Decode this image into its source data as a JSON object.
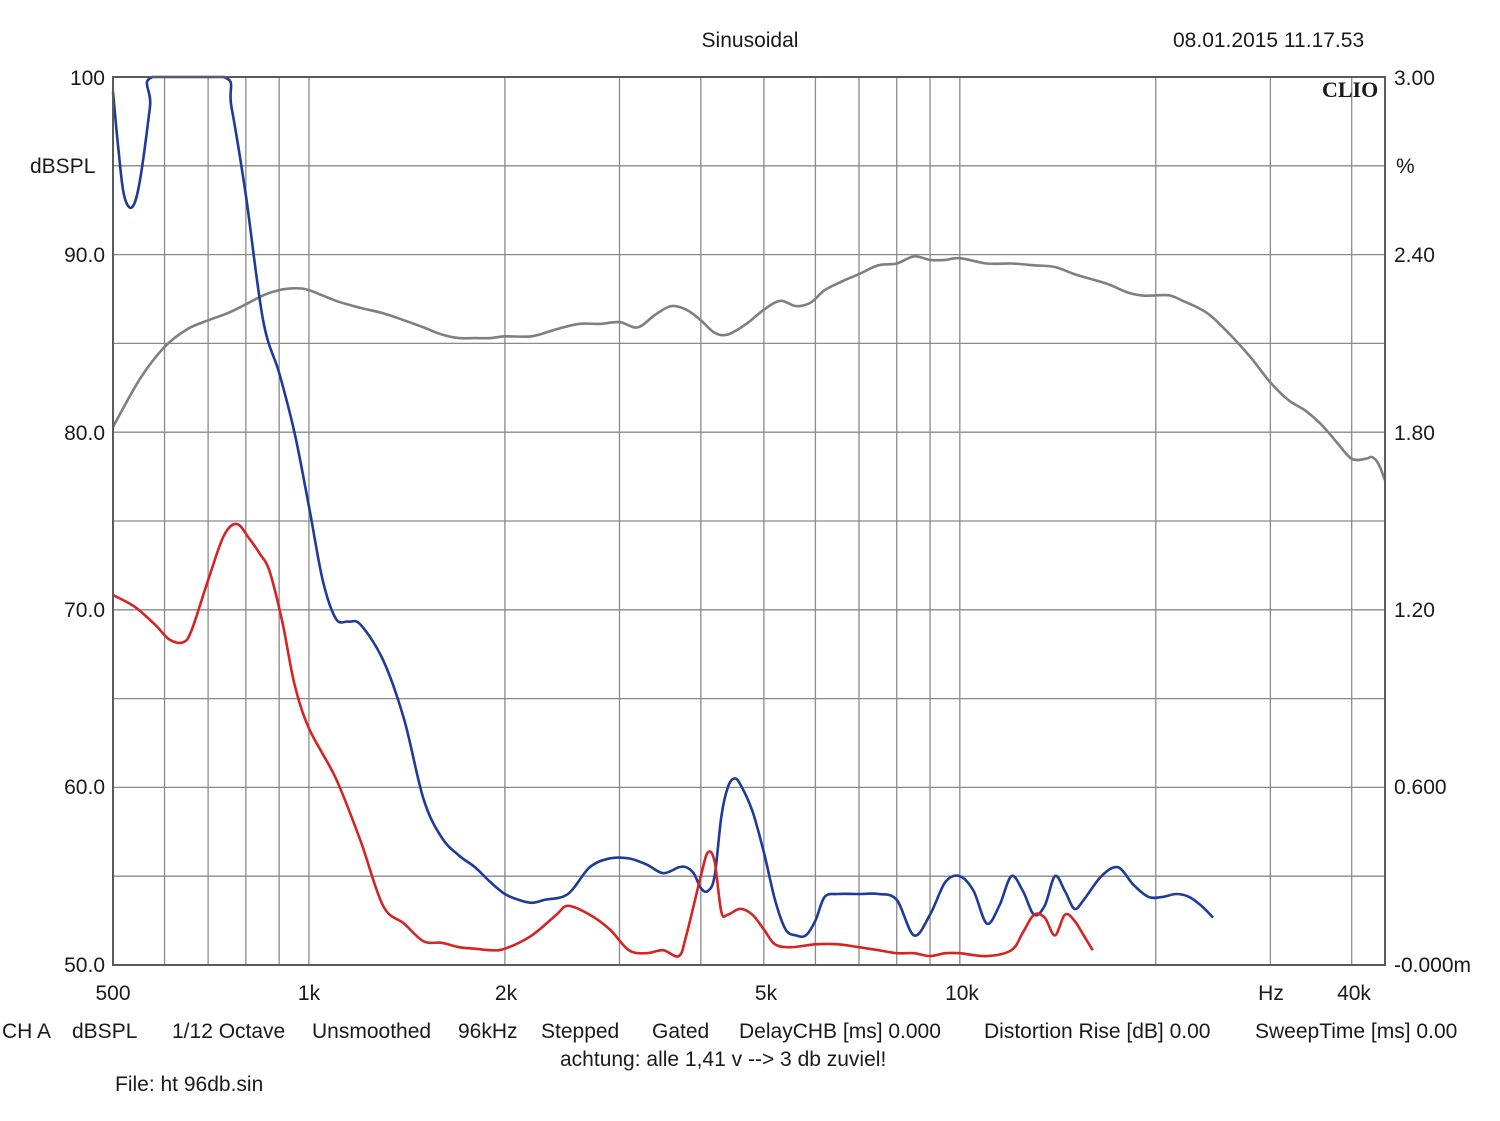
{
  "chart_data": {
    "type": "line",
    "title": "Sinusoidal",
    "timestamp": "08.01.2015 11.17.53",
    "brand": "CLIO",
    "x_scale": "log",
    "xlim": [
      500,
      45000
    ],
    "x_tick_labels": [
      {
        "value": 500,
        "label": "500"
      },
      {
        "value": 1000,
        "label": "1k"
      },
      {
        "value": 2000,
        "label": "2k"
      },
      {
        "value": 5000,
        "label": "5k"
      },
      {
        "value": 10000,
        "label": "10k"
      },
      {
        "value": 40000,
        "label": "40k"
      }
    ],
    "x_unit": "Hz",
    "ylabel_left": "dBSPL",
    "ylim_left": [
      50,
      100
    ],
    "y_tick_labels_left": [
      "100",
      "90.0",
      "80.0",
      "70.0",
      "60.0",
      "50.0"
    ],
    "ylabel_right": "%",
    "ylim_right": [
      0,
      3
    ],
    "y_tick_labels_right": [
      "3.00",
      "2.40",
      "1.80",
      "1.20",
      "0.600",
      "-0.000m"
    ],
    "grid": true,
    "series": [
      {
        "color": "#7f7f7f",
        "axis": "left",
        "points": [
          [
            500,
            80.3
          ],
          [
            550,
            83
          ],
          [
            600,
            84.8
          ],
          [
            650,
            85.8
          ],
          [
            700,
            86.3
          ],
          [
            750,
            86.7
          ],
          [
            800,
            87.2
          ],
          [
            850,
            87.7
          ],
          [
            900,
            88
          ],
          [
            950,
            88.1
          ],
          [
            1000,
            88
          ],
          [
            1100,
            87.4
          ],
          [
            1200,
            87
          ],
          [
            1300,
            86.7
          ],
          [
            1400,
            86.3
          ],
          [
            1500,
            85.9
          ],
          [
            1600,
            85.5
          ],
          [
            1700,
            85.3
          ],
          [
            1800,
            85.3
          ],
          [
            1900,
            85.3
          ],
          [
            2000,
            85.4
          ],
          [
            2200,
            85.4
          ],
          [
            2400,
            85.8
          ],
          [
            2600,
            86.1
          ],
          [
            2800,
            86.1
          ],
          [
            3000,
            86.2
          ],
          [
            3200,
            85.9
          ],
          [
            3400,
            86.6
          ],
          [
            3600,
            87.1
          ],
          [
            3800,
            86.9
          ],
          [
            4000,
            86.3
          ],
          [
            4200,
            85.6
          ],
          [
            4400,
            85.5
          ],
          [
            4700,
            86.1
          ],
          [
            5000,
            86.9
          ],
          [
            5300,
            87.4
          ],
          [
            5600,
            87.1
          ],
          [
            5900,
            87.3
          ],
          [
            6200,
            88
          ],
          [
            6600,
            88.5
          ],
          [
            7000,
            88.9
          ],
          [
            7500,
            89.4
          ],
          [
            8000,
            89.5
          ],
          [
            8500,
            89.9
          ],
          [
            9000,
            89.7
          ],
          [
            9500,
            89.7
          ],
          [
            10000,
            89.8
          ],
          [
            11000,
            89.5
          ],
          [
            12000,
            89.5
          ],
          [
            13000,
            89.4
          ],
          [
            14000,
            89.3
          ],
          [
            15000,
            88.9
          ],
          [
            16000,
            88.6
          ],
          [
            17000,
            88.3
          ],
          [
            18000,
            87.9
          ],
          [
            19000,
            87.7
          ],
          [
            20000,
            87.7
          ],
          [
            21000,
            87.7
          ],
          [
            22000,
            87.4
          ],
          [
            24000,
            86.7
          ],
          [
            26000,
            85.5
          ],
          [
            28000,
            84.2
          ],
          [
            30000,
            82.8
          ],
          [
            32000,
            81.8
          ],
          [
            34000,
            81.2
          ],
          [
            36000,
            80.4
          ],
          [
            38000,
            79.4
          ],
          [
            40000,
            78.5
          ],
          [
            42000,
            78.5
          ],
          [
            43000,
            78.6
          ],
          [
            44000,
            78.2
          ],
          [
            45000,
            77.3
          ]
        ]
      },
      {
        "color": "#1f3b9a",
        "axis": "right",
        "points": [
          [
            500,
            2.95
          ],
          [
            510,
            2.75
          ],
          [
            520,
            2.6
          ],
          [
            535,
            2.56
          ],
          [
            550,
            2.65
          ],
          [
            570,
            2.9
          ],
          [
            575,
            3
          ],
          [
            740,
            3
          ],
          [
            760,
            2.9
          ],
          [
            800,
            2.6
          ],
          [
            850,
            2.18
          ],
          [
            900,
            2.0
          ],
          [
            950,
            1.8
          ],
          [
            1000,
            1.55
          ],
          [
            1050,
            1.3
          ],
          [
            1100,
            1.17
          ],
          [
            1150,
            1.16
          ],
          [
            1200,
            1.15
          ],
          [
            1300,
            1.03
          ],
          [
            1400,
            0.83
          ],
          [
            1500,
            0.56
          ],
          [
            1600,
            0.43
          ],
          [
            1700,
            0.37
          ],
          [
            1800,
            0.33
          ],
          [
            1900,
            0.28
          ],
          [
            2000,
            0.24
          ],
          [
            2100,
            0.22
          ],
          [
            2200,
            0.21
          ],
          [
            2300,
            0.22
          ],
          [
            2500,
            0.24
          ],
          [
            2700,
            0.33
          ],
          [
            2900,
            0.36
          ],
          [
            3100,
            0.36
          ],
          [
            3300,
            0.34
          ],
          [
            3500,
            0.31
          ],
          [
            3700,
            0.33
          ],
          [
            3800,
            0.33
          ],
          [
            3900,
            0.31
          ],
          [
            4000,
            0.26
          ],
          [
            4100,
            0.25
          ],
          [
            4200,
            0.3
          ],
          [
            4300,
            0.5
          ],
          [
            4400,
            0.6
          ],
          [
            4500,
            0.63
          ],
          [
            4600,
            0.61
          ],
          [
            4800,
            0.52
          ],
          [
            5000,
            0.38
          ],
          [
            5200,
            0.22
          ],
          [
            5400,
            0.12
          ],
          [
            5600,
            0.1
          ],
          [
            5800,
            0.1
          ],
          [
            6000,
            0.15
          ],
          [
            6200,
            0.23
          ],
          [
            6500,
            0.24
          ],
          [
            7000,
            0.24
          ],
          [
            7500,
            0.24
          ],
          [
            8000,
            0.22
          ],
          [
            8500,
            0.1
          ],
          [
            9000,
            0.17
          ],
          [
            9500,
            0.28
          ],
          [
            10000,
            0.3
          ],
          [
            10500,
            0.25
          ],
          [
            11000,
            0.14
          ],
          [
            11500,
            0.2
          ],
          [
            12000,
            0.3
          ],
          [
            12500,
            0.25
          ],
          [
            13000,
            0.17
          ],
          [
            13500,
            0.2
          ],
          [
            14000,
            0.3
          ],
          [
            14500,
            0.25
          ],
          [
            15000,
            0.19
          ],
          [
            15500,
            0.22
          ],
          [
            16500,
            0.3
          ],
          [
            17500,
            0.33
          ],
          [
            18500,
            0.27
          ],
          [
            19500,
            0.23
          ],
          [
            20500,
            0.23
          ],
          [
            21500,
            0.24
          ],
          [
            22500,
            0.23
          ],
          [
            23500,
            0.2
          ],
          [
            24500,
            0.16
          ]
        ]
      },
      {
        "color": "#d42424",
        "axis": "right",
        "points": [
          [
            500,
            1.25
          ],
          [
            540,
            1.21
          ],
          [
            580,
            1.15
          ],
          [
            610,
            1.1
          ],
          [
            640,
            1.09
          ],
          [
            660,
            1.13
          ],
          [
            700,
            1.3
          ],
          [
            740,
            1.45
          ],
          [
            775,
            1.49
          ],
          [
            810,
            1.44
          ],
          [
            840,
            1.39
          ],
          [
            870,
            1.33
          ],
          [
            910,
            1.16
          ],
          [
            950,
            0.95
          ],
          [
            1000,
            0.8
          ],
          [
            1100,
            0.63
          ],
          [
            1200,
            0.42
          ],
          [
            1300,
            0.2
          ],
          [
            1400,
            0.14
          ],
          [
            1500,
            0.08
          ],
          [
            1600,
            0.075
          ],
          [
            1700,
            0.06
          ],
          [
            1800,
            0.055
          ],
          [
            1900,
            0.05
          ],
          [
            2000,
            0.055
          ],
          [
            2200,
            0.1
          ],
          [
            2400,
            0.17
          ],
          [
            2500,
            0.2
          ],
          [
            2700,
            0.17
          ],
          [
            2900,
            0.12
          ],
          [
            3100,
            0.05
          ],
          [
            3300,
            0.04
          ],
          [
            3500,
            0.05
          ],
          [
            3700,
            0.03
          ],
          [
            3800,
            0.1
          ],
          [
            4000,
            0.3
          ],
          [
            4100,
            0.38
          ],
          [
            4200,
            0.35
          ],
          [
            4300,
            0.18
          ],
          [
            4400,
            0.17
          ],
          [
            4600,
            0.19
          ],
          [
            4800,
            0.17
          ],
          [
            5000,
            0.12
          ],
          [
            5200,
            0.07
          ],
          [
            5500,
            0.06
          ],
          [
            6000,
            0.07
          ],
          [
            6500,
            0.07
          ],
          [
            7000,
            0.06
          ],
          [
            7500,
            0.05
          ],
          [
            8000,
            0.04
          ],
          [
            8500,
            0.04
          ],
          [
            9000,
            0.03
          ],
          [
            9500,
            0.04
          ],
          [
            10000,
            0.04
          ],
          [
            11000,
            0.03
          ],
          [
            12000,
            0.05
          ],
          [
            12500,
            0.11
          ],
          [
            13000,
            0.17
          ],
          [
            13500,
            0.16
          ],
          [
            14000,
            0.1
          ],
          [
            14500,
            0.17
          ],
          [
            15000,
            0.15
          ],
          [
            15500,
            0.1
          ],
          [
            16000,
            0.05
          ]
        ]
      }
    ]
  },
  "footer": {
    "row1": [
      "CH A",
      "dBSPL",
      "1/12 Octave",
      "Unsmoothed",
      "96kHz",
      "Stepped",
      "Gated",
      "DelayCHB [ms] 0.000",
      "Distortion Rise [dB] 0.00",
      "SweepTime [ms] 0.00"
    ],
    "note": "achtung: alle 1,41 v --> 3 db zuviel!",
    "file": "File: ht 96db.sin"
  }
}
